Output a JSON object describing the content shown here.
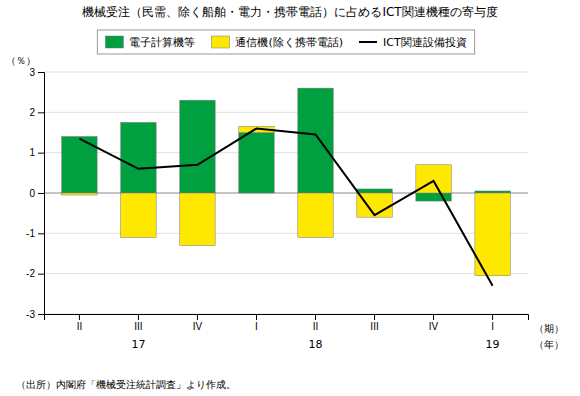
{
  "chart_data": {
    "type": "bar",
    "title": "機械受注（民需、除く船舶・電力・携帯電話）に占めるICT関連機種の寄与度",
    "footnote": "（出所）内閣府「機械受注統計調査」より作成。",
    "ylabel": "（％）",
    "xlabel": [
      "（期）",
      "（年）"
    ],
    "categories": [
      "II",
      "III",
      "IV",
      "I",
      "II",
      "III",
      "IV",
      "I"
    ],
    "year_labels": [
      {
        "label": "17",
        "category": 1
      },
      {
        "label": "18",
        "category": 4
      },
      {
        "label": "19",
        "category": 7
      }
    ],
    "series": [
      {
        "name": "電子計算機等",
        "type": "bar",
        "color": "#00A040",
        "values": [
          1.4,
          1.75,
          2.3,
          1.5,
          2.6,
          0.1,
          -0.2,
          0.05
        ]
      },
      {
        "name": "通信機(除く携帯電話)",
        "type": "bar",
        "color": "#FFE800",
        "values": [
          -0.05,
          -1.1,
          -1.3,
          0.15,
          -1.1,
          -0.6,
          0.7,
          -2.05
        ]
      },
      {
        "name": "ICT関連設備投資",
        "type": "line",
        "color": "#000000",
        "values": [
          1.35,
          0.6,
          0.7,
          1.6,
          1.45,
          -0.55,
          0.3,
          -2.3
        ]
      }
    ],
    "stacked": true,
    "ylim": [
      -3.0,
      3.0
    ],
    "yticks": [
      -3,
      -2,
      -1,
      0,
      1,
      2,
      3
    ],
    "grid": true,
    "legend": "top"
  }
}
